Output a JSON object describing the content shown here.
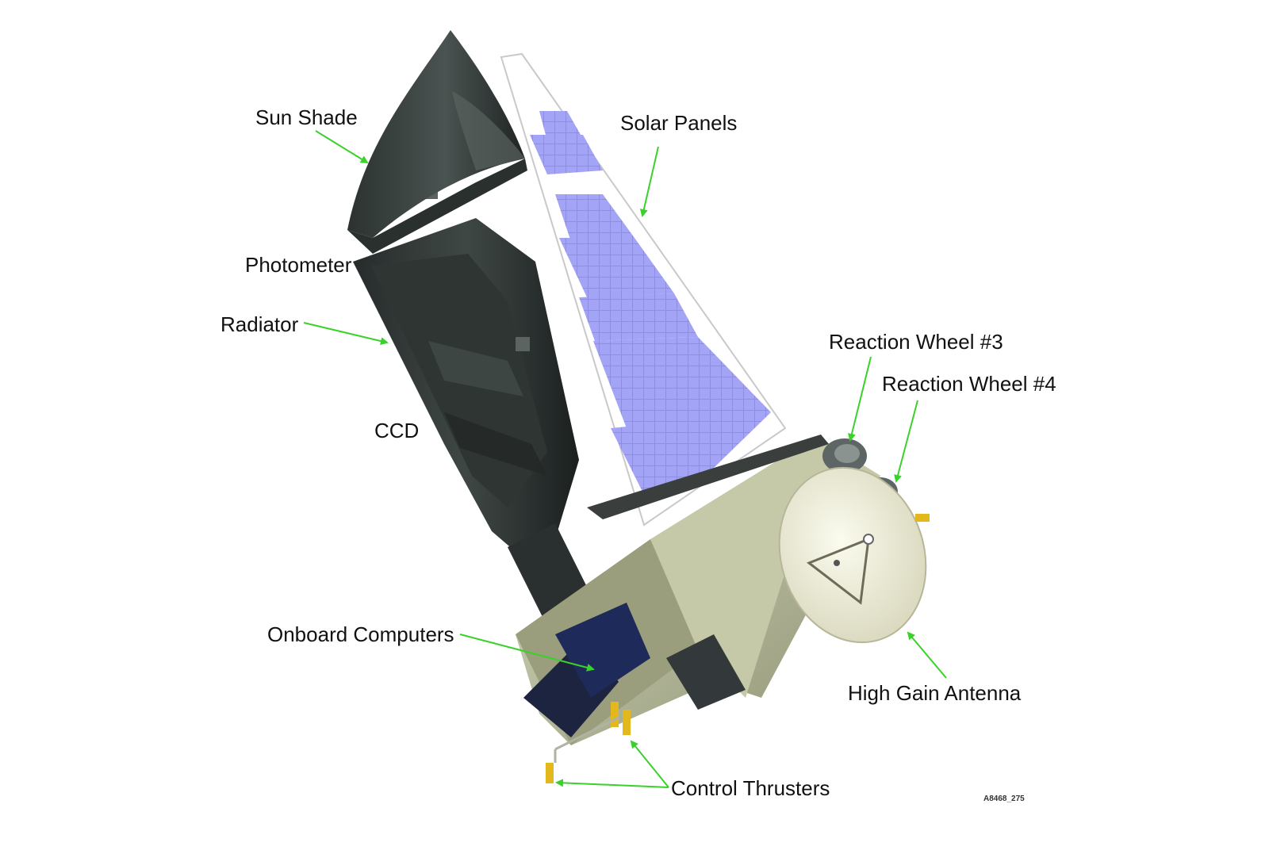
{
  "labels": {
    "sun_shade": "Sun Shade",
    "solar_panels": "Solar Panels",
    "photometer": "Photometer",
    "radiator": "Radiator",
    "ccd": "CCD",
    "reaction_wheel_3": "Reaction Wheel #3",
    "reaction_wheel_4": "Reaction Wheel #4",
    "onboard_computers": "Onboard Computers",
    "high_gain_antenna": "High Gain Antenna",
    "control_thrusters": "Control Thrusters"
  },
  "figure_code": "A8468_275",
  "colors": {
    "arrow": "#3ad12a",
    "solar_cell": "#8c8cf0",
    "telescope": "#3a4240",
    "bus": "#b8bc98",
    "antenna": "#f1f0dc",
    "thruster": "#e2b81c"
  }
}
